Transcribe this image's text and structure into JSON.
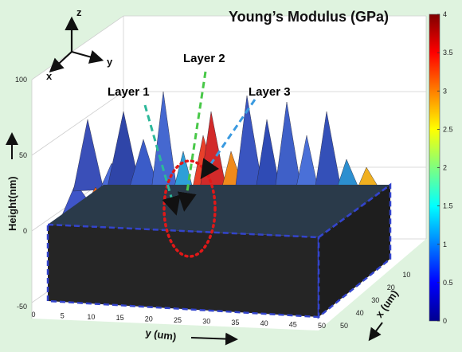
{
  "chart_data": {
    "type": "surface3d",
    "title": "Young’s Modulus (GPa)",
    "zlabel": "Height(nm)",
    "ylabel": "y (um)",
    "xlabel": "x (um)",
    "zticks": [
      "100",
      "50",
      "0",
      "-50"
    ],
    "yticks": [
      "0",
      "5",
      "10",
      "15",
      "20",
      "25",
      "30",
      "35",
      "40",
      "45",
      "50"
    ],
    "xticks": [
      "10",
      "20",
      "30",
      "40",
      "50"
    ],
    "zlim": [
      -50,
      100
    ],
    "ylim": [
      0,
      50
    ],
    "xlim": [
      0,
      50
    ],
    "colorbar": {
      "range": [
        0,
        4
      ],
      "ticks": [
        "4",
        "3.5",
        "3",
        "2.5",
        "2",
        "1.5",
        "1",
        "0.5",
        "0"
      ],
      "colormap": "jet"
    },
    "orientation_axes": [
      "z",
      "y",
      "x"
    ],
    "annotations": [
      {
        "text": "Layer 1",
        "color": "#2db89a"
      },
      {
        "text": "Layer 2",
        "color": "#48c848"
      },
      {
        "text": "Layer 3",
        "color": "#3a9ae0"
      }
    ]
  }
}
